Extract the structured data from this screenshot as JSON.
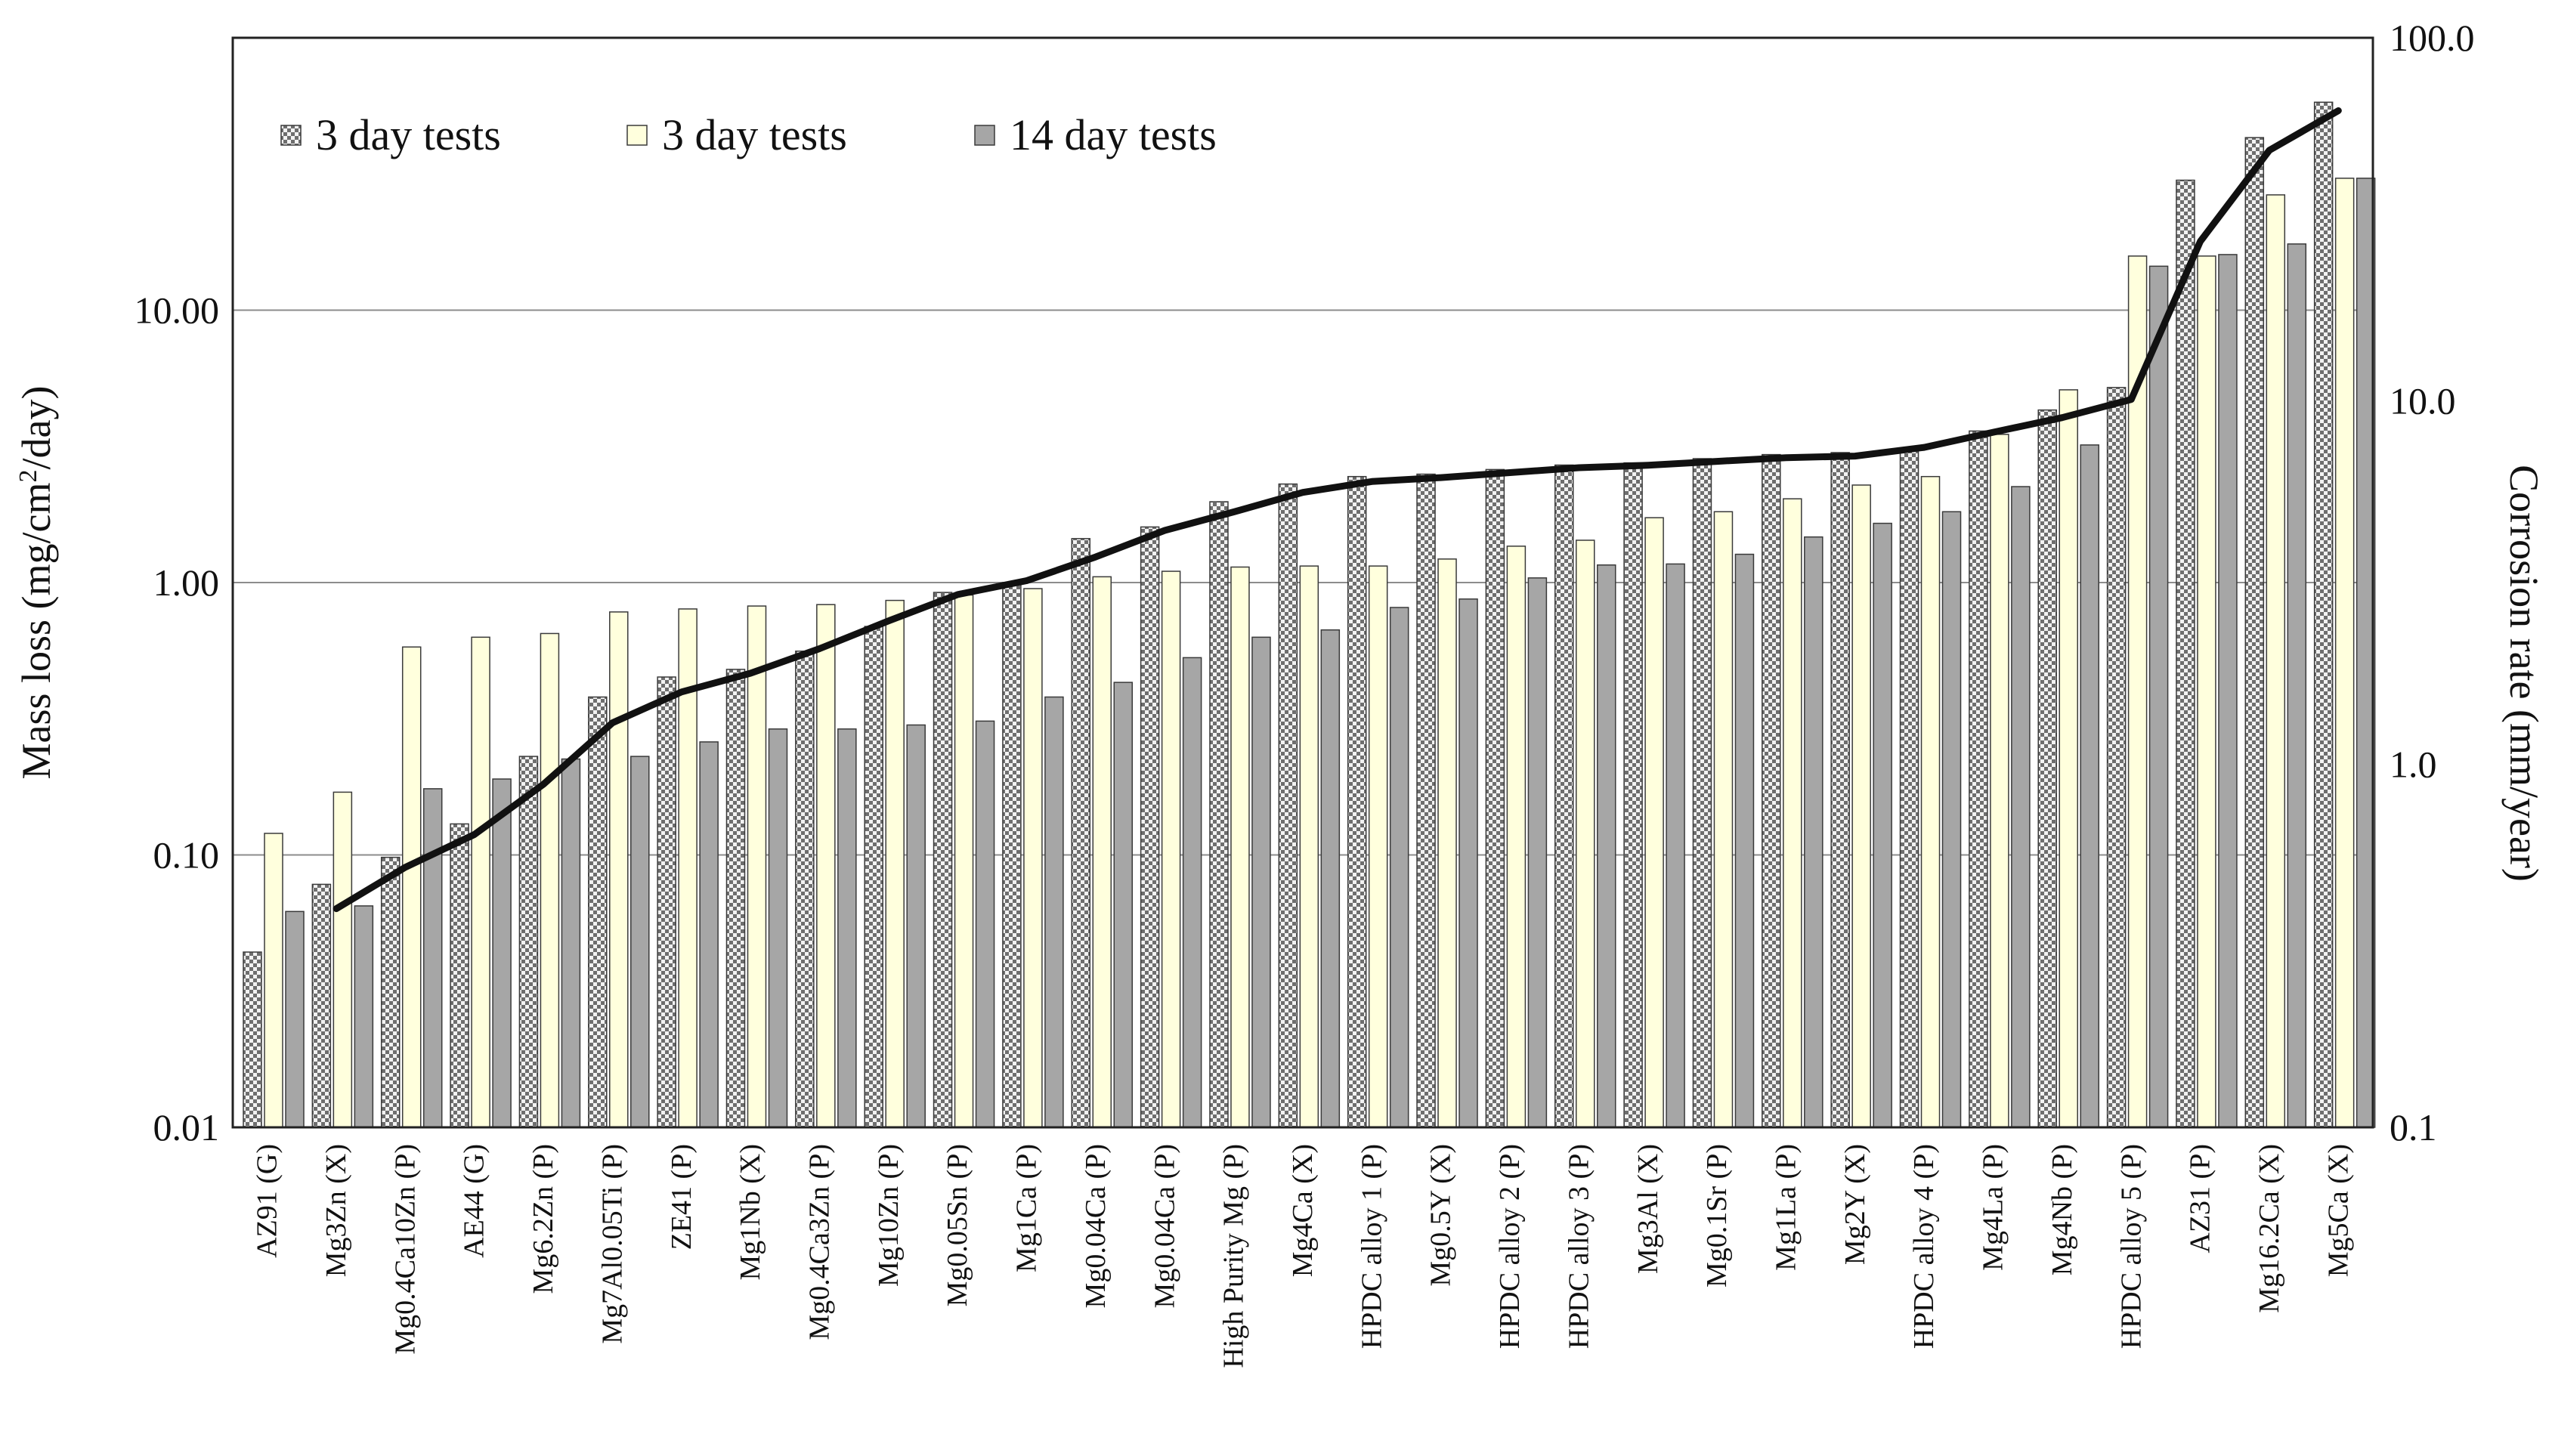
{
  "chart_data": {
    "type": "bar",
    "scale": "log",
    "title": "",
    "ylabel_left": "Mass loss (mg/cm",
    "ylabel_left_sup": "2",
    "ylabel_left_tail": "/day)",
    "ylabel_right": "Corrosion rate (mm/year)",
    "ylim_left": [
      0.01,
      100
    ],
    "ylim_right": [
      0.1,
      100
    ],
    "yticks_left": [
      "0.01",
      "0.10",
      "1.00",
      "10.00"
    ],
    "yticks_right": [
      "0.1",
      "1.0",
      "10.0",
      "100.0"
    ],
    "legend_position": "top-left",
    "categories": [
      "AZ91 (G)",
      "Mg3Zn (X)",
      "Mg0.4Ca10Zn (P)",
      "AE44 (G)",
      "Mg6.2Zn (P)",
      "Mg7Al0.05Ti (P)",
      "ZE41 (P)",
      "Mg1Nb (X)",
      "Mg0.4Ca3Zn (P)",
      "Mg10Zn (P)",
      "Mg0.05Sn (P)",
      "Mg1Ca (P)",
      "Mg0.04Ca (P)",
      "Mg0.04Ca (P)",
      "High Purity Mg (P)",
      "Mg4Ca (X)",
      "HPDC alloy 1 (P)",
      "Mg0.5Y (X)",
      "HPDC alloy 2 (P)",
      "HPDC alloy 3 (P)",
      "Mg3Al (X)",
      "Mg0.1Sr (P)",
      "Mg1La (P)",
      "Mg2Y (X)",
      "HPDC alloy 4 (P)",
      "Mg4La (P)",
      "Mg4Nb (P)",
      "HPDC alloy 5 (P)",
      "AZ31 (P)",
      "Mg16.2Ca (X)",
      "Mg5Ca (X)"
    ],
    "series": [
      {
        "name": "3 day tests",
        "pattern": "checker",
        "color": "#d9d9d9",
        "values": [
          0.044,
          0.078,
          0.098,
          0.13,
          0.23,
          0.38,
          0.45,
          0.48,
          0.56,
          0.69,
          0.92,
          1.0,
          1.45,
          1.6,
          1.98,
          2.3,
          2.45,
          2.5,
          2.6,
          2.7,
          2.75,
          2.85,
          2.95,
          3.0,
          3.1,
          3.6,
          4.3,
          5.2,
          30.0,
          43.0,
          58.0
        ]
      },
      {
        "name": "3 day tests",
        "pattern": "solid",
        "color": "#ffffdd",
        "values": [
          0.12,
          0.17,
          0.58,
          0.63,
          0.65,
          0.78,
          0.8,
          0.82,
          0.83,
          0.86,
          0.9,
          0.95,
          1.05,
          1.1,
          1.14,
          1.15,
          1.15,
          1.22,
          1.36,
          1.43,
          1.73,
          1.82,
          2.03,
          2.28,
          2.45,
          3.5,
          5.1,
          15.8,
          15.8,
          26.5,
          30.5
        ]
      },
      {
        "name": "14 day tests",
        "pattern": "solid",
        "color": "#a6a6a6",
        "values": [
          0.062,
          0.065,
          0.175,
          0.19,
          0.225,
          0.23,
          0.26,
          0.29,
          0.29,
          0.3,
          0.31,
          0.38,
          0.43,
          0.53,
          0.63,
          0.67,
          0.81,
          0.87,
          1.04,
          1.16,
          1.17,
          1.27,
          1.47,
          1.65,
          1.82,
          2.25,
          3.2,
          14.5,
          16.0,
          17.5,
          30.5
        ]
      }
    ],
    "line": {
      "name": "Corrosion rate",
      "axis": "right",
      "start_index": 1,
      "values": [
        0.4,
        0.52,
        0.64,
        0.88,
        1.3,
        1.58,
        1.78,
        2.08,
        2.48,
        2.93,
        3.2,
        3.72,
        4.4,
        4.95,
        5.6,
        6.0,
        6.15,
        6.35,
        6.55,
        6.65,
        6.82,
        6.98,
        7.05,
        7.45,
        8.2,
        9.0,
        10.1,
        27.5,
        49.0,
        63.0
      ]
    }
  }
}
